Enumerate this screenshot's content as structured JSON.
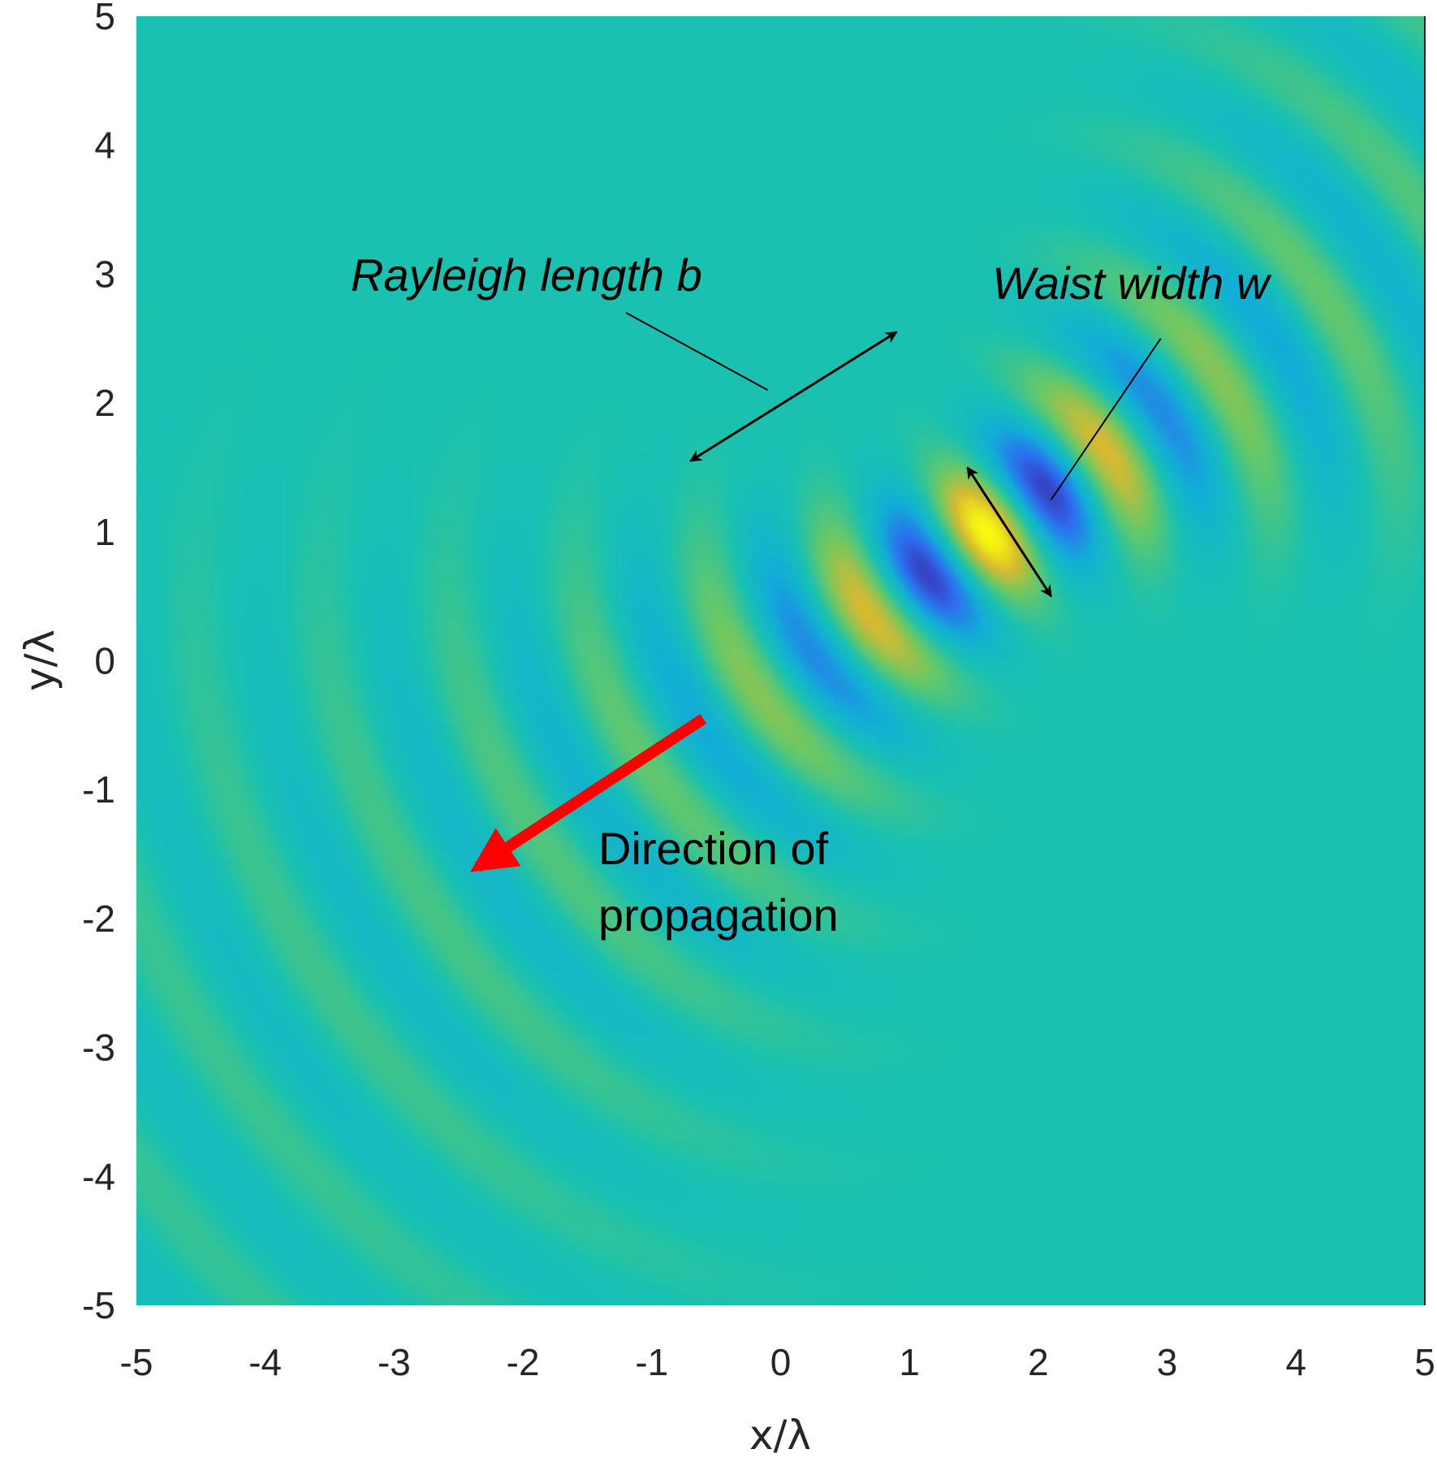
{
  "chart_data": {
    "type": "heatmap",
    "title": "",
    "xlabel": "x/λ",
    "ylabel": "y/λ",
    "xlim": [
      -5,
      5
    ],
    "ylim": [
      -5,
      5
    ],
    "x_ticks": [
      "-5",
      "-4",
      "-3",
      "-2",
      "-1",
      "0",
      "1",
      "2",
      "3",
      "4",
      "5"
    ],
    "y_ticks": [
      "-5",
      "-4",
      "-3",
      "-2",
      "-1",
      "0",
      "1",
      "2",
      "3",
      "4",
      "5"
    ],
    "grid": false,
    "colormap": "parula",
    "colormap_stops": [
      "#3e26a8",
      "#2d6ff0",
      "#12afd6",
      "#1ac1b0",
      "#69c866",
      "#d8ba30",
      "#f9fb0e"
    ],
    "field": {
      "description_type": "gaussian_beam_real_part",
      "waist_center": [
        1.6,
        1.0
      ],
      "propagation_direction": [
        -0.82,
        -0.57
      ],
      "wavelength": 1,
      "waist_width": 0.55,
      "rayleigh_length": 1.0
    },
    "annotations": [
      {
        "text": "Rayleigh length b",
        "style": "italic",
        "arrow": "double",
        "from": [
          -0.7,
          1.55
        ],
        "to": [
          0.9,
          2.55
        ],
        "leader_from": [
          -1.2,
          2.7
        ],
        "leader_to": [
          -0.1,
          2.1
        ]
      },
      {
        "text": "Waist width w",
        "style": "italic",
        "arrow": "double",
        "from": [
          1.45,
          1.5
        ],
        "to": [
          2.1,
          0.5
        ],
        "leader_from": [
          2.95,
          2.5
        ],
        "leader_to": [
          2.1,
          1.25
        ]
      },
      {
        "text_lines": [
          "Direction of",
          "propagation"
        ],
        "style": "normal",
        "arrow": "single",
        "color": "#ff0000",
        "from": [
          -0.6,
          -0.45
        ],
        "to": [
          -2.35,
          -1.6
        ]
      }
    ]
  }
}
